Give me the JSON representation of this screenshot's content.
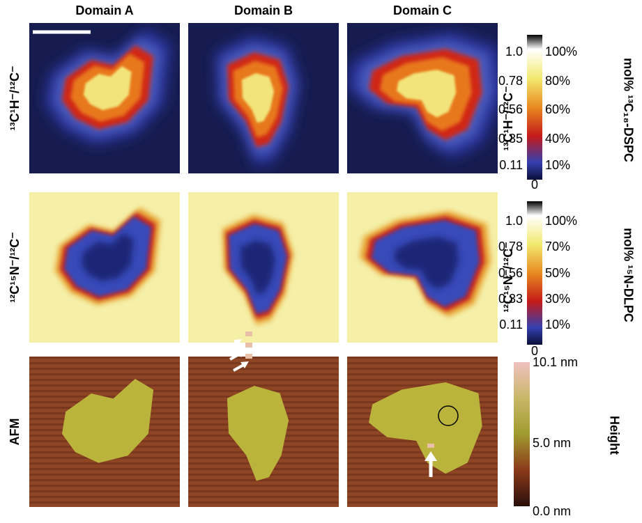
{
  "column_headers": [
    "Domain A",
    "Domain B",
    "Domain C"
  ],
  "rows": [
    {
      "label": "¹³C¹H⁻/¹²C⁻"
    },
    {
      "label": "¹²C¹⁵N⁻/¹²C⁻"
    },
    {
      "label": "AFM"
    }
  ],
  "colorbars": [
    {
      "axis_label": "¹³C¹H⁻/¹²C⁻",
      "ratio_ticks": [
        "1.0",
        "0.78",
        "0.56",
        "0.35",
        "0.11",
        "0"
      ],
      "percent_ticks": [
        "100%",
        "80%",
        "60%",
        "40%",
        "10%"
      ],
      "title": "mol% ¹³C₁₈-DSPC"
    },
    {
      "axis_label": "¹²C¹⁵N⁻/¹²C⁻",
      "ratio_ticks": [
        "1.0",
        "0.78",
        "0.56",
        "0.33",
        "0.11",
        "0"
      ],
      "percent_ticks": [
        "100%",
        "70%",
        "50%",
        "30%",
        "10%"
      ],
      "title": "mol% ¹⁵N-DLPC"
    },
    {
      "ticks": [
        "10.1 nm",
        "5.0 nm",
        "0.0 nm"
      ],
      "title": "Height"
    }
  ]
}
